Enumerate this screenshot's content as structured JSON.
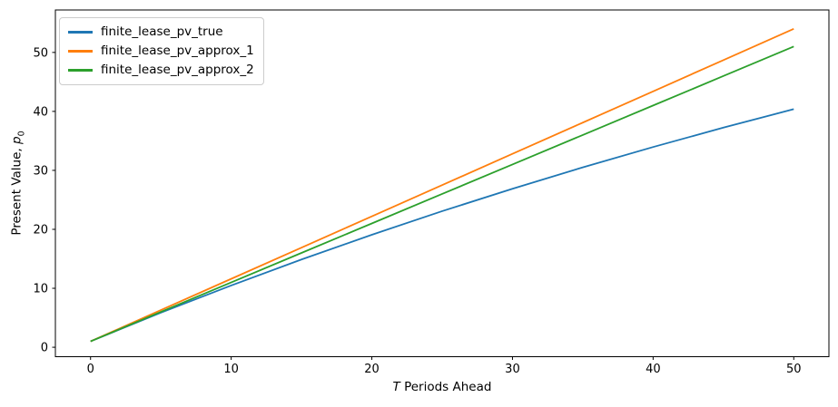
{
  "figure": {
    "background": "#ffffff",
    "axis_color": "#000000"
  },
  "chart_data": {
    "type": "line",
    "title": "",
    "xlabel_math": "T",
    "xlabel_text": " Periods Ahead",
    "ylabel_text": "Present Value, ",
    "ylabel_math": "p",
    "ylabel_sub": "0",
    "x": [
      0,
      5,
      10,
      15,
      20,
      25,
      30,
      35,
      40,
      45,
      50
    ],
    "series": [
      {
        "name": "finite_lease_pv_true",
        "color": "#1f77b4",
        "values": [
          1.0,
          5.86,
          10.48,
          14.89,
          19.08,
          23.08,
          26.88,
          30.51,
          33.96,
          37.25,
          40.38
        ]
      },
      {
        "name": "finite_lease_pv_approx_1",
        "color": "#ff7f0e",
        "values": [
          1.0,
          6.3,
          11.6,
          16.9,
          22.2,
          27.5,
          32.8,
          38.1,
          43.4,
          48.7,
          54.0
        ]
      },
      {
        "name": "finite_lease_pv_approx_2",
        "color": "#2ca02c",
        "values": [
          1,
          6,
          11,
          16,
          21,
          26,
          31,
          36,
          41,
          46,
          51
        ]
      }
    ],
    "x_ticks": [
      0,
      10,
      20,
      30,
      40,
      50
    ],
    "y_ticks": [
      0,
      10,
      20,
      30,
      40,
      50
    ],
    "xlim": [
      -2.5,
      52.5
    ],
    "ylim": [
      -1.6,
      57.2
    ],
    "grid": false,
    "legend_position": "upper left"
  }
}
